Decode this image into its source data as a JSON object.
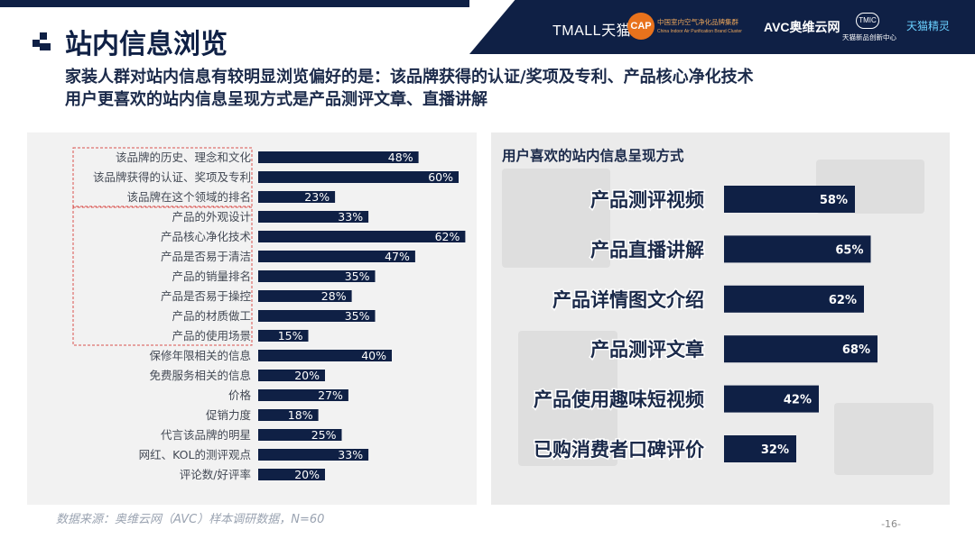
{
  "header": {
    "title": "站内信息浏览",
    "subtitle_line1": "家装人群对站内信息有较明显浏览偏好的是：该品牌获得的认证/奖项及专利、产品核心净化技术",
    "subtitle_line2": "用户更喜欢的站内信息呈现方式是产品测评文章、直播讲解",
    "logos": {
      "tmall": "TMALL天猫",
      "cap_mark": "CAP",
      "cap_text1": "中国室内空气净化品牌集群",
      "cap_text2": "China Indoor Air Purification Brand Cluster",
      "avc": "AVC奥维云网",
      "tmic_mark": "TMIC",
      "tmic_text": "天猫新品创新中心",
      "tmjl": "天猫精灵"
    }
  },
  "chart_data": [
    {
      "type": "bar",
      "orientation": "horizontal",
      "title": "",
      "categories": [
        "该品牌的历史、理念和文化",
        "该品牌获得的认证、奖项及专利",
        "该品牌在这个领域的排名",
        "产品的外观设计",
        "产品核心净化技术",
        "产品是否易于清洁",
        "产品的销量排名",
        "产品是否易于操控",
        "产品的材质做工",
        "产品的使用场景",
        "保修年限相关的信息",
        "免费服务相关的信息",
        "价格",
        "促销力度",
        "代言该品牌的明星",
        "网红、KOL的测评观点",
        "评论数/好评率"
      ],
      "values": [
        48,
        60,
        23,
        33,
        62,
        47,
        35,
        28,
        35,
        15,
        40,
        20,
        27,
        18,
        25,
        33,
        20
      ],
      "value_labels": [
        "48%",
        "60%",
        "23%",
        "33%",
        "62%",
        "47%",
        "35%",
        "28%",
        "35%",
        "15%",
        "40%",
        "20%",
        "27%",
        "18%",
        "25%",
        "33%",
        "20%"
      ],
      "unit": "%",
      "xlim": [
        0,
        100
      ],
      "bar_color": "#0f2045",
      "highlight_groups": [
        [
          0,
          2
        ],
        [
          3,
          9
        ]
      ],
      "highlight_color": "#d9534f",
      "grid": false,
      "legend": false
    },
    {
      "type": "bar",
      "orientation": "horizontal",
      "title": "用户喜欢的站内信息呈现方式",
      "categories": [
        "产品测评视频",
        "产品直播讲解",
        "产品详情图文介绍",
        "产品测评文章",
        "产品使用趣味短视频",
        "已购消费者口碑评价"
      ],
      "values": [
        58,
        65,
        62,
        68,
        42,
        32
      ],
      "value_labels": [
        "58%",
        "65%",
        "62%",
        "68%",
        "42%",
        "32%"
      ],
      "unit": "%",
      "xlim": [
        0,
        100
      ],
      "bar_color": "#0f2045",
      "grid": false,
      "legend": false
    }
  ],
  "footer": {
    "source": "数据来源：奥维云网（AVC）样本调研数据，N=60",
    "page_number": "-16-"
  }
}
